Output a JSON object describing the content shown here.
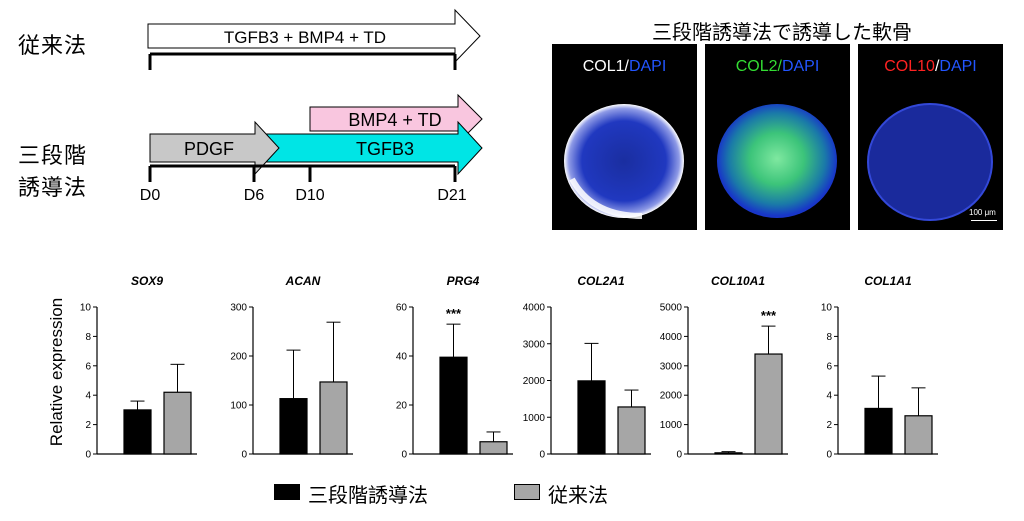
{
  "protocol_diagram": {
    "conventional_label": "従来法",
    "conventional_arrow": "TGFB3 + BMP4 + TD",
    "three_step_label_line1": "三段階",
    "three_step_label_line2": "誘導法",
    "arrow_pdgf": "PDGF",
    "arrow_tgfb3": "TGFB3",
    "arrow_bmp4_td": "BMP4 + TD",
    "days": [
      "D0",
      "D6",
      "D10",
      "D21"
    ],
    "colors": {
      "pdgf": "#c8c8c8",
      "tgfb3": "#00e5e5",
      "bmp4_td": "#f9c6df"
    }
  },
  "images": {
    "title": "三段階誘導法で誘導した軟骨",
    "panels": [
      {
        "marker": "COL1",
        "marker_color": "#ffffff",
        "sep": "/",
        "dapi": "DAPI",
        "dapi_color": "#2255ff"
      },
      {
        "marker": "COL2",
        "marker_color": "#33dd33",
        "sep": "/",
        "dapi": "DAPI",
        "dapi_color": "#2255ff"
      },
      {
        "marker": "COL10",
        "marker_color": "#ff2222",
        "sep": "/",
        "dapi": "DAPI",
        "dapi_color": "#2255ff"
      }
    ],
    "scale_bar": "100 μm"
  },
  "chart_data": {
    "type": "bar",
    "ylabel": "Relative expression",
    "series": [
      {
        "name": "三段階誘導法",
        "color": "#000000"
      },
      {
        "name": "従来法",
        "color": "#a6a6a6"
      }
    ],
    "panels": [
      {
        "gene": "SOX9",
        "ylim": [
          0,
          10
        ],
        "ticks": [
          0,
          2,
          4,
          6,
          8,
          10
        ],
        "values": [
          3.0,
          4.2
        ],
        "errors": [
          0.6,
          1.9
        ],
        "sig": ""
      },
      {
        "gene": "ACAN",
        "ylim": [
          0,
          300
        ],
        "ticks": [
          0,
          100,
          200,
          300
        ],
        "values": [
          113,
          147
        ],
        "errors": [
          99,
          122
        ],
        "sig": ""
      },
      {
        "gene": "PRG4",
        "ylim": [
          0,
          60
        ],
        "ticks": [
          0,
          20,
          40,
          60
        ],
        "values": [
          39.5,
          5
        ],
        "errors": [
          13.5,
          4
        ],
        "sig": "***"
      },
      {
        "gene": "COL2A1",
        "ylim": [
          0,
          4000
        ],
        "ticks": [
          0,
          1000,
          2000,
          3000,
          4000
        ],
        "values": [
          1990,
          1280
        ],
        "errors": [
          1020,
          460
        ],
        "sig": ""
      },
      {
        "gene": "COL10A1",
        "ylim": [
          0,
          5000
        ],
        "ticks": [
          0,
          1000,
          2000,
          3000,
          4000,
          5000
        ],
        "values": [
          40,
          3400
        ],
        "errors": [
          40,
          950
        ],
        "sig": "***"
      },
      {
        "gene": "COL1A1",
        "ylim": [
          0,
          10
        ],
        "ticks": [
          0,
          2,
          4,
          6,
          8,
          10
        ],
        "values": [
          3.1,
          2.6
        ],
        "errors": [
          2.2,
          1.9
        ],
        "sig": ""
      }
    ]
  }
}
